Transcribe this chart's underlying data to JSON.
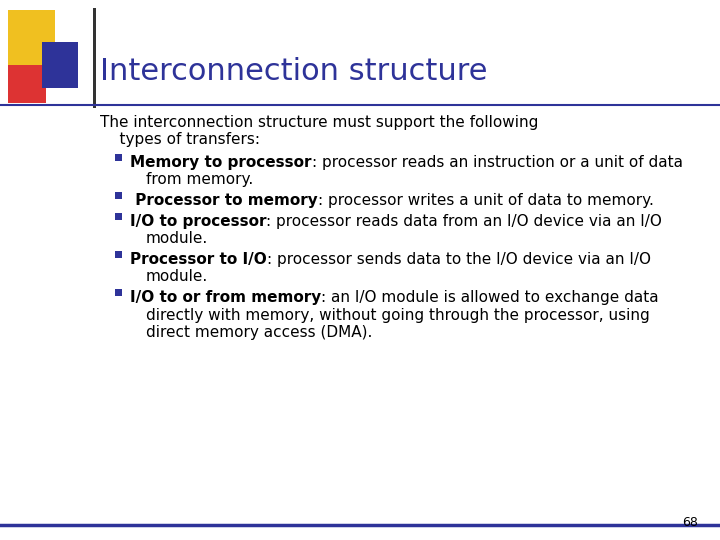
{
  "title": "Interconnection structure",
  "title_color": "#2E3399",
  "title_fontsize": 22,
  "background_color": "#FFFFFF",
  "page_number": "68",
  "intro_line1": "The interconnection structure must support the following",
  "intro_line2": "    types of transfers:",
  "bullets": [
    {
      "bold_part": "Memory to processor",
      "rest": ": processor reads an instruction or a unit of data from memory."
    },
    {
      "bold_part": " Processor to memory",
      "rest": ": processor writes a unit of data to memory."
    },
    {
      "bold_part": "I/O to processor",
      "rest": ": processor reads data from an I/O device via an I/O module."
    },
    {
      "bold_part": "Processor to I/O",
      "rest": ": processor sends data to the I/O device via an I/O module."
    },
    {
      "bold_part": "I/O to or from memory",
      "rest": ": an I/O module is allowed to exchange data directly with memory, without going through the processor, using direct memory access (DMA)."
    }
  ],
  "accent_yellow": "#F0C020",
  "accent_red": "#DD3333",
  "accent_blue": "#2E3399",
  "bullet_color": "#2E3399",
  "text_color": "#000000",
  "body_fontsize": 11.0,
  "bottom_line_color": "#2E3399"
}
